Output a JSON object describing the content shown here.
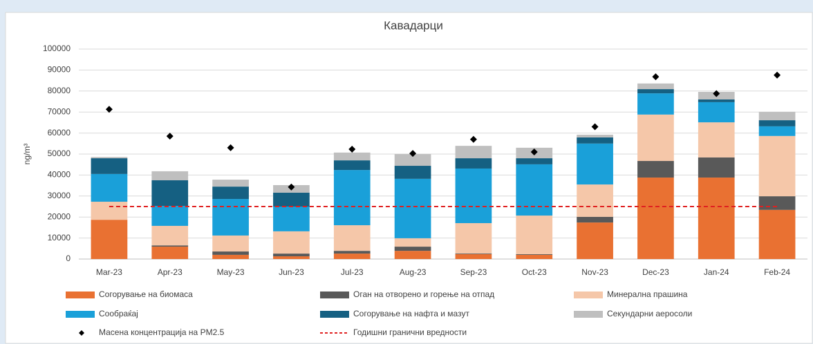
{
  "chart_data": {
    "type": "stacked-bar",
    "title": "Кавадарци",
    "y_label": "ng/m³",
    "categories": [
      "Mar-23",
      "Apr-23",
      "May-23",
      "Jun-23",
      "Jul-23",
      "Aug-23",
      "Sep-23",
      "Oct-23",
      "Nov-23",
      "Dec-23",
      "Jan-24",
      "Feb-24"
    ],
    "series": [
      {
        "name": "Согорување на биомаса",
        "color": "#e97132",
        "values": [
          18700,
          5900,
          2000,
          1300,
          2600,
          3900,
          2300,
          2000,
          17400,
          38800,
          38800,
          23400
        ]
      },
      {
        "name": "Оган на отворено и горење на отпад",
        "color": "#595959",
        "values": [
          0,
          600,
          1600,
          1300,
          1300,
          2000,
          300,
          300,
          2700,
          7900,
          9600,
          6500
        ]
      },
      {
        "name": "Минерална прашина",
        "color": "#f5c7a9",
        "values": [
          8600,
          9300,
          7600,
          10600,
          12200,
          4000,
          14500,
          18400,
          15400,
          22100,
          16700,
          28700
        ]
      },
      {
        "name": "Сообраќај",
        "color": "#1aa0d9",
        "values": [
          13200,
          9500,
          17400,
          11800,
          26300,
          28300,
          26000,
          24400,
          19500,
          10100,
          9600,
          4600
        ]
      },
      {
        "name": "Согорување на нафта и мазут",
        "color": "#156082",
        "values": [
          7500,
          12200,
          5900,
          6600,
          4600,
          6200,
          4900,
          2900,
          2900,
          2000,
          1300,
          2900
        ]
      },
      {
        "name": "Секундарни аеросоли",
        "color": "#bfbfbf",
        "values": [
          600,
          4300,
          3300,
          3600,
          3700,
          5600,
          5900,
          5000,
          1300,
          2700,
          3600,
          4000
        ]
      }
    ],
    "points": {
      "name": "Масена концентрација на PM2.5",
      "color": "#000000",
      "values": [
        71300,
        58500,
        53000,
        34300,
        52300,
        50300,
        57000,
        51000,
        63000,
        86800,
        78800,
        87600
      ]
    },
    "limit": {
      "name": "Годишни гранични вредности",
      "color": "#e02020",
      "value": 25000
    },
    "ylim": [
      0,
      100000
    ],
    "yticks": [
      0,
      10000,
      20000,
      30000,
      40000,
      50000,
      60000,
      70000,
      80000,
      90000,
      100000
    ],
    "grid": true
  }
}
